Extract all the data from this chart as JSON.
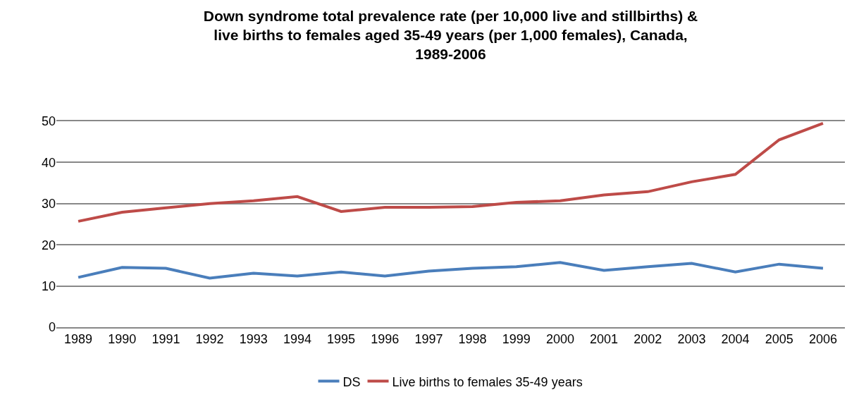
{
  "chart_data": {
    "type": "line",
    "title": "Down syndrome total prevalence rate (per 10,000 live and stillbirths) & live births to females aged 35-49 years (per 1,000 females), Canada, 1989-2006",
    "categories": [
      "1989",
      "1990",
      "1991",
      "1992",
      "1993",
      "1994",
      "1995",
      "1996",
      "1997",
      "1998",
      "1999",
      "2000",
      "2001",
      "2002",
      "2003",
      "2004",
      "2005",
      "2006"
    ],
    "series": [
      {
        "name": "DS",
        "color": "#4a7ebb",
        "values": [
          12.1,
          14.5,
          14.3,
          11.9,
          13.1,
          12.4,
          13.4,
          12.4,
          13.6,
          14.3,
          14.7,
          15.7,
          13.8,
          14.7,
          15.5,
          13.4,
          15.3,
          14.3
        ]
      },
      {
        "name": "Live births to females 35-49 years",
        "color": "#be4b48",
        "values": [
          25.7,
          27.9,
          29.0,
          30.0,
          30.7,
          31.7,
          28.1,
          29.1,
          29.1,
          29.3,
          30.3,
          30.7,
          32.1,
          32.9,
          35.3,
          37.1,
          45.5,
          49.5
        ]
      }
    ],
    "ylim": [
      0,
      50
    ],
    "yticks": [
      0,
      10,
      20,
      30,
      40,
      50
    ],
    "grid": "y",
    "legend": "bottom",
    "marker": "none",
    "line_style": "solid"
  }
}
